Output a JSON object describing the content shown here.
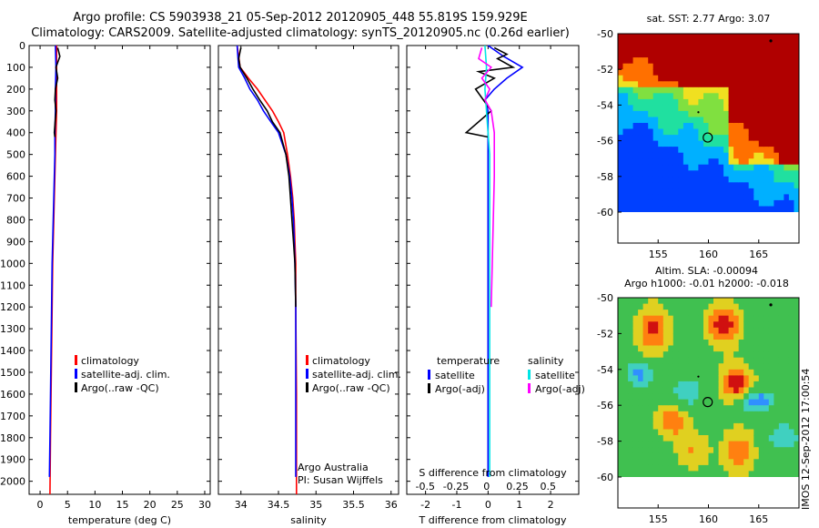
{
  "header": {
    "line1": "Argo profile: CS 5903938_21 05-Sep-2012 20120905_448 55.819S 159.929E",
    "line2": "Climatology: CARS2009. Satellite-adjusted climatology: synTS_20120905.nc (0.26d earlier)"
  },
  "side_label": "IMOS 12-Sep-2012 17:00:54",
  "colors": {
    "climatology": "#ff0000",
    "satellite": "#0000ff",
    "argo": "#000000",
    "sal_satellite": "#00e5e5",
    "sal_argo": "#ff00ff"
  },
  "chart_data": [
    {
      "type": "line",
      "xlabel": "temperature (deg C)",
      "ylabel": "",
      "xlim": [
        -2,
        31
      ],
      "ylim": [
        2060,
        0
      ],
      "xticks": [
        0,
        5,
        10,
        15,
        20,
        25,
        30
      ],
      "xtick_labels": [
        "0",
        "5",
        "10",
        "15",
        "20",
        "25",
        "30"
      ],
      "yticks": [
        0,
        100,
        200,
        300,
        400,
        500,
        600,
        700,
        800,
        900,
        1000,
        1100,
        1200,
        1300,
        1400,
        1500,
        1600,
        1700,
        1800,
        1900,
        2000
      ],
      "ytick_labels": [
        "0",
        "100",
        "200",
        "300",
        "400",
        "500",
        "600",
        "700",
        "800",
        "900",
        "1000",
        "1100",
        "1200",
        "1300",
        "1400",
        "1500",
        "1600",
        "1700",
        "1800",
        "1900",
        "2000"
      ],
      "legend": [
        "climatology",
        "satellite-adj. clim.",
        "Argo(..raw -QC)"
      ],
      "series": [
        {
          "name": "climatology",
          "color": "#ff0000",
          "x": [
            3.0,
            3.0,
            3.0,
            3.0,
            2.9,
            2.8,
            2.7,
            2.6,
            2.5,
            2.4,
            2.3,
            2.2,
            2.1,
            2.0,
            1.9,
            1.8
          ],
          "y": [
            0,
            100,
            200,
            300,
            400,
            500,
            600,
            700,
            800,
            900,
            1000,
            1200,
            1400,
            1600,
            1800,
            2060
          ]
        },
        {
          "name": "satellite-adj. clim.",
          "color": "#0000ff",
          "x": [
            2.8,
            2.9,
            2.8,
            2.8,
            2.7,
            2.7,
            2.6,
            2.5,
            2.4,
            2.3,
            2.2,
            2.1,
            2.0,
            1.9,
            1.8,
            1.7
          ],
          "y": [
            0,
            100,
            200,
            300,
            400,
            500,
            600,
            700,
            800,
            900,
            1000,
            1200,
            1400,
            1600,
            1800,
            1980
          ]
        },
        {
          "name": "Argo(..raw -QC)",
          "color": "#000000",
          "x": [
            3.2,
            3.6,
            2.9,
            3.2,
            2.8,
            2.7,
            2.9,
            2.6,
            2.7
          ],
          "y": [
            10,
            50,
            100,
            150,
            200,
            250,
            300,
            400,
            420
          ]
        }
      ]
    },
    {
      "type": "line",
      "xlabel": "salinity",
      "xlim": [
        33.7,
        36.1
      ],
      "ylim": [
        2060,
        0
      ],
      "xticks": [
        34,
        34.5,
        35,
        35.5,
        36
      ],
      "xtick_labels": [
        "34",
        "34.5",
        "35",
        "35.5",
        "36"
      ],
      "legend": [
        "climatology",
        "satellite-adj. clim.",
        "Argo(..raw -QC)"
      ],
      "annotation": [
        "Argo Australia",
        "PI: Susan Wijffels"
      ],
      "series": [
        {
          "name": "climatology",
          "color": "#ff0000",
          "x": [
            33.95,
            33.97,
            33.99,
            34.1,
            34.22,
            34.32,
            34.42,
            34.5,
            34.57,
            34.62,
            34.66,
            34.69,
            34.71,
            34.72,
            34.73,
            34.73,
            34.74,
            34.74
          ],
          "y": [
            0,
            50,
            100,
            150,
            200,
            250,
            300,
            350,
            400,
            500,
            600,
            700,
            800,
            900,
            1000,
            1200,
            1600,
            2060
          ]
        },
        {
          "name": "satellite-adj. clim.",
          "color": "#0000ff",
          "x": [
            33.95,
            33.96,
            33.97,
            34.05,
            34.12,
            34.22,
            34.3,
            34.4,
            34.5,
            34.6,
            34.65,
            34.68,
            34.7,
            34.71,
            34.72,
            34.73,
            34.73,
            34.73
          ],
          "y": [
            0,
            50,
            100,
            150,
            200,
            250,
            300,
            350,
            400,
            500,
            600,
            700,
            800,
            900,
            1000,
            1200,
            1600,
            1980
          ]
        },
        {
          "name": "Argo(..raw -QC)",
          "color": "#000000",
          "x": [
            34.0,
            33.97,
            33.99,
            34.08,
            34.16,
            34.25,
            34.35,
            34.42,
            34.52,
            34.6,
            34.64,
            34.66,
            34.68,
            34.7,
            34.72,
            34.73
          ],
          "y": [
            10,
            60,
            100,
            150,
            200,
            250,
            300,
            350,
            400,
            500,
            600,
            700,
            800,
            900,
            1000,
            1200
          ]
        }
      ]
    },
    {
      "type": "line",
      "xlabel": "T difference from climatology",
      "xlim": [
        -2.6,
        2.9
      ],
      "ylim": [
        2060,
        0
      ],
      "xticks": [
        -2,
        -1,
        0,
        1,
        2
      ],
      "xtick_labels": [
        "-2",
        "-1",
        "0",
        "1",
        "2"
      ],
      "top_label": "S difference from climatology",
      "s_ticks": [
        -0.5,
        -0.25,
        0,
        0.25,
        0.5
      ],
      "s_tick_labels": [
        "-0.5",
        "-0.25",
        "0",
        "0.25",
        "0.5"
      ],
      "legend_groups": [
        {
          "title": "temperature",
          "items": [
            "satellite",
            "Argo(-adj)"
          ]
        },
        {
          "title": "salinity",
          "items": [
            "satellite",
            "Argo(-adj)"
          ]
        }
      ],
      "series": [
        {
          "name": "temperature satellite",
          "color": "#0000ff",
          "x": [
            0.0,
            0.5,
            1.1,
            0.6,
            0.2,
            -0.1,
            0.0,
            0.0,
            0.0,
            0.0,
            0.0
          ],
          "y": [
            0,
            50,
            100,
            150,
            200,
            250,
            300,
            400,
            600,
            1000,
            1980
          ]
        },
        {
          "name": "temperature Argo(-adj)",
          "color": "#000000",
          "x": [
            0.2,
            0.6,
            0.3,
            0.8,
            -0.3,
            0.2,
            -0.4,
            0.1,
            -0.7,
            0.0
          ],
          "y": [
            10,
            40,
            60,
            100,
            120,
            150,
            200,
            300,
            400,
            420
          ]
        },
        {
          "name": "salinity satellite",
          "color": "#00e5e5",
          "x": [
            -0.1,
            -0.05,
            -0.1,
            -0.05,
            0.0,
            0.05,
            0.05,
            0.05,
            0.05,
            0.05,
            0.05
          ],
          "y": [
            0,
            100,
            200,
            300,
            400,
            500,
            700,
            1000,
            1400,
            1800,
            1980
          ]
        },
        {
          "name": "salinity Argo(-adj)",
          "color": "#ff00ff",
          "x": [
            -0.2,
            -0.3,
            0.1,
            -0.2,
            0.05,
            -0.1,
            0.1,
            0.2,
            0.2,
            0.1
          ],
          "y": [
            10,
            60,
            100,
            150,
            200,
            250,
            300,
            400,
            600,
            1200
          ]
        }
      ]
    },
    {
      "type": "heatmap",
      "title": "sat. SST: 2.77  Argo: 3.07",
      "xlim": [
        151,
        169
      ],
      "ylim": [
        -60,
        -50
      ],
      "xticks": [
        155,
        160,
        165
      ],
      "xtick_labels": [
        "155",
        "160",
        "165"
      ],
      "yticks": [
        -50,
        -52,
        -54,
        -56,
        -58,
        -60
      ],
      "ytick_labels": [
        "-50",
        "-52",
        "-54",
        "-56",
        "-58",
        "-60"
      ],
      "marker": {
        "lon": 159.93,
        "lat": -55.82
      }
    },
    {
      "type": "heatmap",
      "title_lines": [
        "Altim. SLA: -0.00094",
        "Argo h1000: -0.01 h2000: -0.018"
      ],
      "xlim": [
        151,
        169
      ],
      "ylim": [
        -60,
        -50
      ],
      "xticks": [
        155,
        160,
        165
      ],
      "xtick_labels": [
        "155",
        "160",
        "165"
      ],
      "yticks": [
        -50,
        -52,
        -54,
        -56,
        -58,
        -60
      ],
      "ytick_labels": [
        "-50",
        "-52",
        "-54",
        "-56",
        "-58",
        "-60"
      ],
      "marker": {
        "lon": 159.93,
        "lat": -55.82
      }
    }
  ]
}
